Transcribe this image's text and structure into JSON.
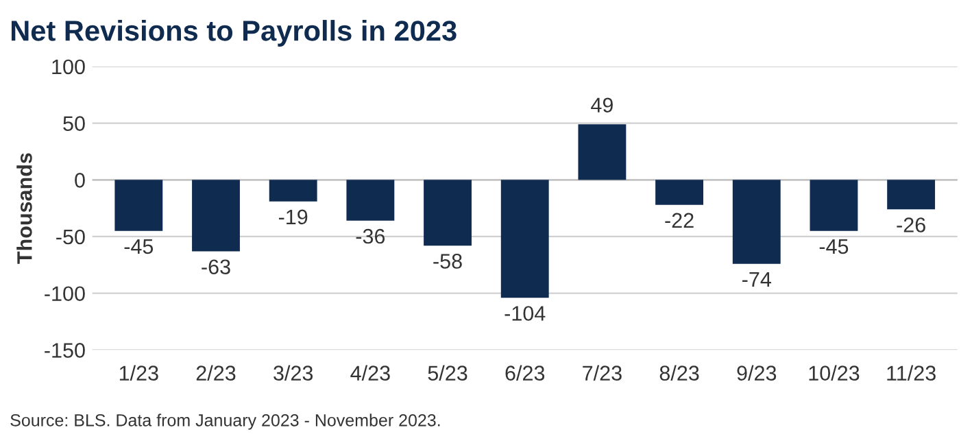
{
  "chart_data": {
    "type": "bar",
    "title": "Net Revisions to Payrolls in 2023",
    "ylabel": "Thousands",
    "categories": [
      "1/23",
      "2/23",
      "3/23",
      "4/23",
      "5/23",
      "6/23",
      "7/23",
      "8/23",
      "9/23",
      "10/23",
      "11/23"
    ],
    "values": [
      -45,
      -63,
      -19,
      -36,
      -58,
      -104,
      49,
      -22,
      -74,
      -45,
      -26
    ],
    "color": "#0f2b50",
    "ylim": [
      -150,
      100
    ],
    "yticks": [
      -150,
      -100,
      -50,
      0,
      50,
      100
    ],
    "grid": "y",
    "data_labels": true,
    "annotations": [
      "Source: BLS. Data from January 2023 - November 2023."
    ]
  }
}
